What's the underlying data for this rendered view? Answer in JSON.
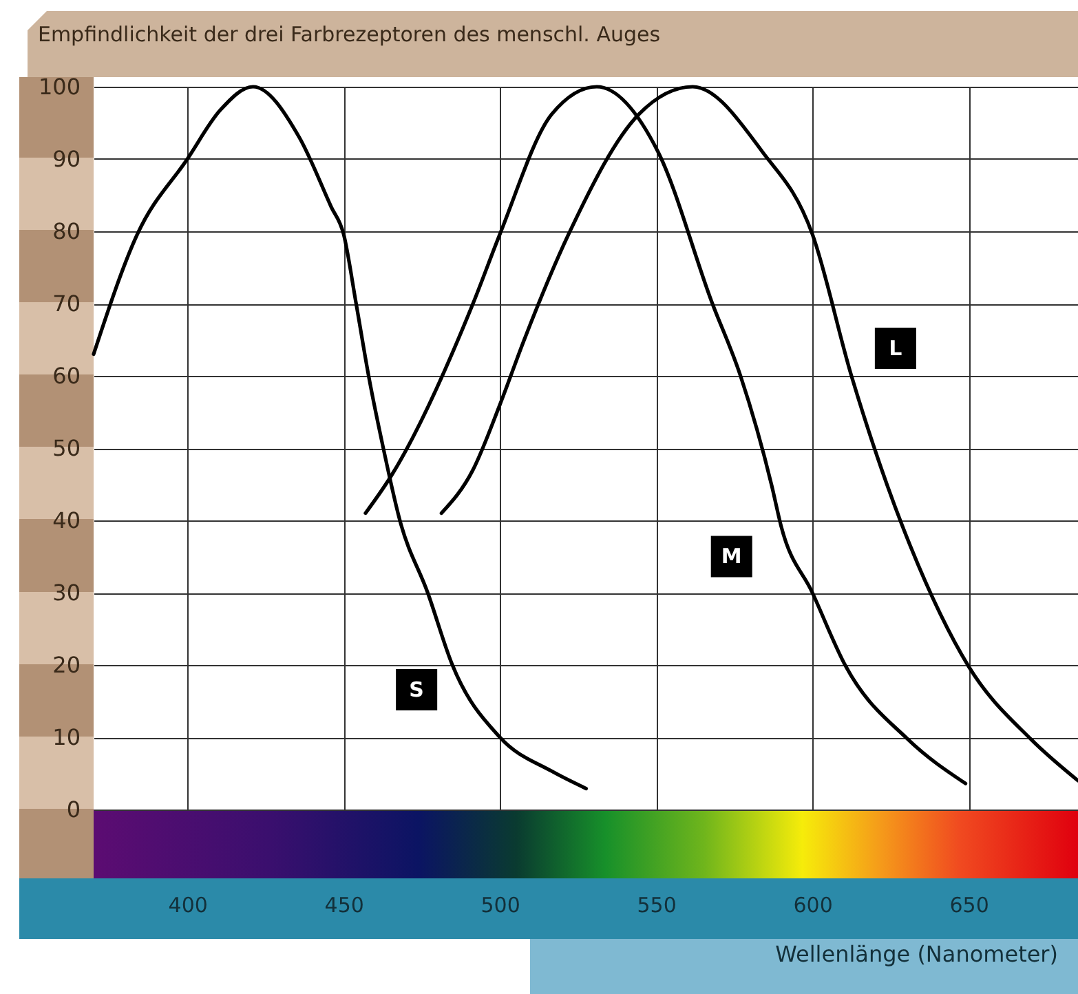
{
  "chart_data": {
    "type": "line",
    "title": "Empfindlichkeit der drei Farbrezeptoren des menschl. Auges",
    "xlabel": "Wellenlänge (Nanometer)",
    "xlim": [
      370,
      685
    ],
    "xticks": [
      400,
      450,
      500,
      550,
      600,
      650
    ],
    "ylim": [
      0,
      100
    ],
    "yticks": [
      0,
      10,
      20,
      30,
      40,
      50,
      60,
      70,
      80,
      90,
      100
    ],
    "grid": true,
    "series": [
      {
        "name": "S",
        "color": "#000000",
        "x": [
          370,
          384,
          400,
          410.6,
          421,
          435.8,
          446,
          450,
          454,
          458,
          462.7,
          468,
          476.9,
          484.8,
          500,
          516.6,
          527.6
        ],
        "values": [
          63,
          79.6,
          90,
          96.8,
          100,
          93,
          83.4,
          79.6,
          70,
          60,
          50,
          40,
          30,
          20,
          10,
          5.3,
          2.9
        ]
      },
      {
        "name": "M",
        "color": "#000000",
        "x": [
          457,
          465,
          491.4,
          500,
          516.6,
          531,
          550.6,
          568,
          577,
          587,
          590,
          600,
          610.7,
          630.6,
          649
        ],
        "values": [
          41,
          46,
          70,
          79.6,
          96.2,
          100,
          91,
          70,
          60,
          44.8,
          39.2,
          30,
          19.8,
          9.7,
          3.6
        ]
      },
      {
        "name": "L",
        "color": "#000000",
        "x": [
          481.3,
          491.4,
          500,
          507.8,
          522,
          544.5,
          561.7,
          584,
          600,
          612.5,
          624,
          631.4,
          650,
          670,
          685
        ],
        "values": [
          41,
          47,
          56,
          65,
          79.6,
          96.2,
          100,
          91,
          79.6,
          60,
          44.8,
          36.4,
          19.8,
          9.7,
          4
        ]
      }
    ]
  }
}
